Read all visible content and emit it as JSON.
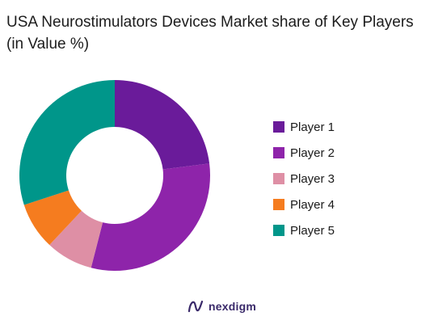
{
  "title": "USA Neurostimulators Devices Market share of Key Players (in Value %)",
  "brand": {
    "name": "nexdigm",
    "icon": "nexdigm-logo-icon"
  },
  "chart_data": {
    "type": "pie",
    "donut": true,
    "title": "USA Neurostimulators Devices Market share of Key Players (in Value %)",
    "categories": [
      "Player 1",
      "Player 2",
      "Player 3",
      "Player 4",
      "Player 5"
    ],
    "values": [
      23,
      31,
      8,
      8,
      30
    ],
    "colors": [
      "#6a1b9a",
      "#8e24aa",
      "#de8fa5",
      "#f57c1f",
      "#00968a"
    ],
    "start": "top",
    "direction": "clockwise",
    "legend": "right"
  }
}
